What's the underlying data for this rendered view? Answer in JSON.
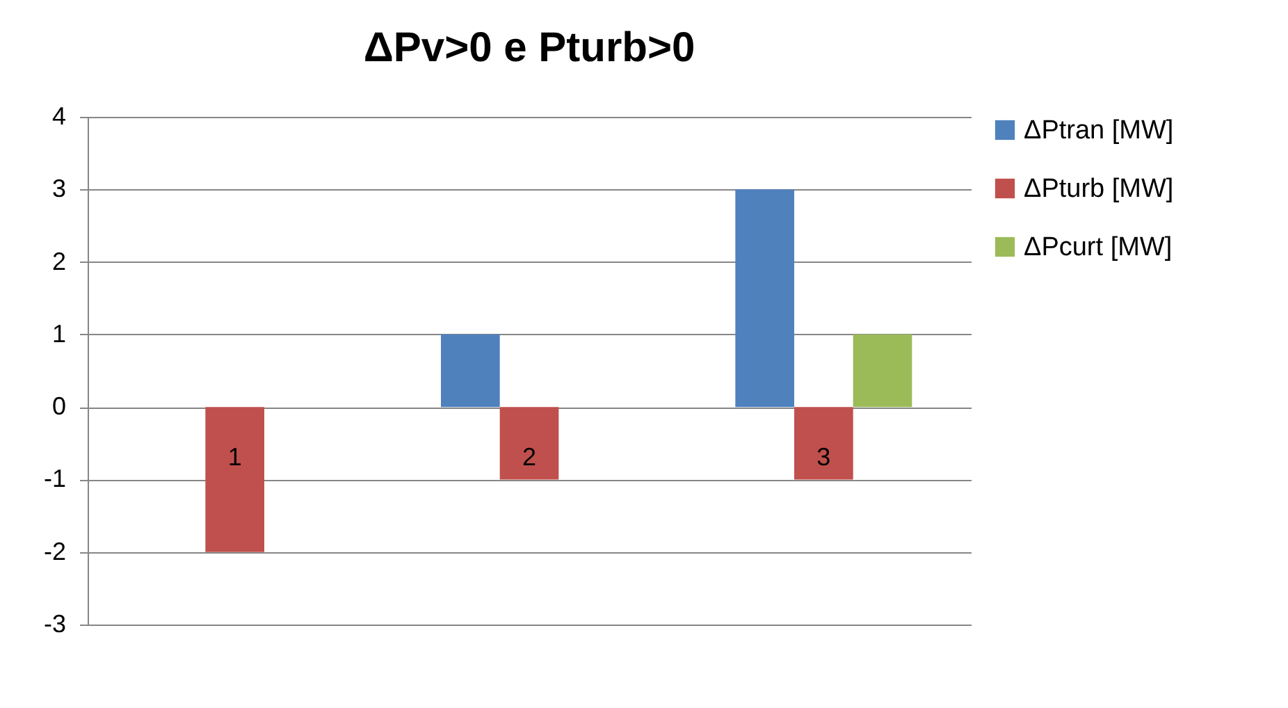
{
  "chart_data": {
    "type": "bar",
    "title": "ΔPv>0 e Pturb>0",
    "categories": [
      "1",
      "2",
      "3"
    ],
    "series": [
      {
        "name": "ΔPtran [MW]",
        "color": "#4f81bd",
        "values": [
          0,
          1,
          3
        ]
      },
      {
        "name": "ΔPturb [MW]",
        "color": "#c0504d",
        "values": [
          -2,
          -1,
          -1
        ]
      },
      {
        "name": "ΔPcurt [MW]",
        "color": "#9bbb59",
        "values": [
          0,
          0,
          1
        ]
      }
    ],
    "ylim": [
      -3,
      4
    ],
    "yticks": [
      -3,
      -2,
      -1,
      0,
      1,
      2,
      3,
      4
    ],
    "grid": "y",
    "legend": "right"
  }
}
